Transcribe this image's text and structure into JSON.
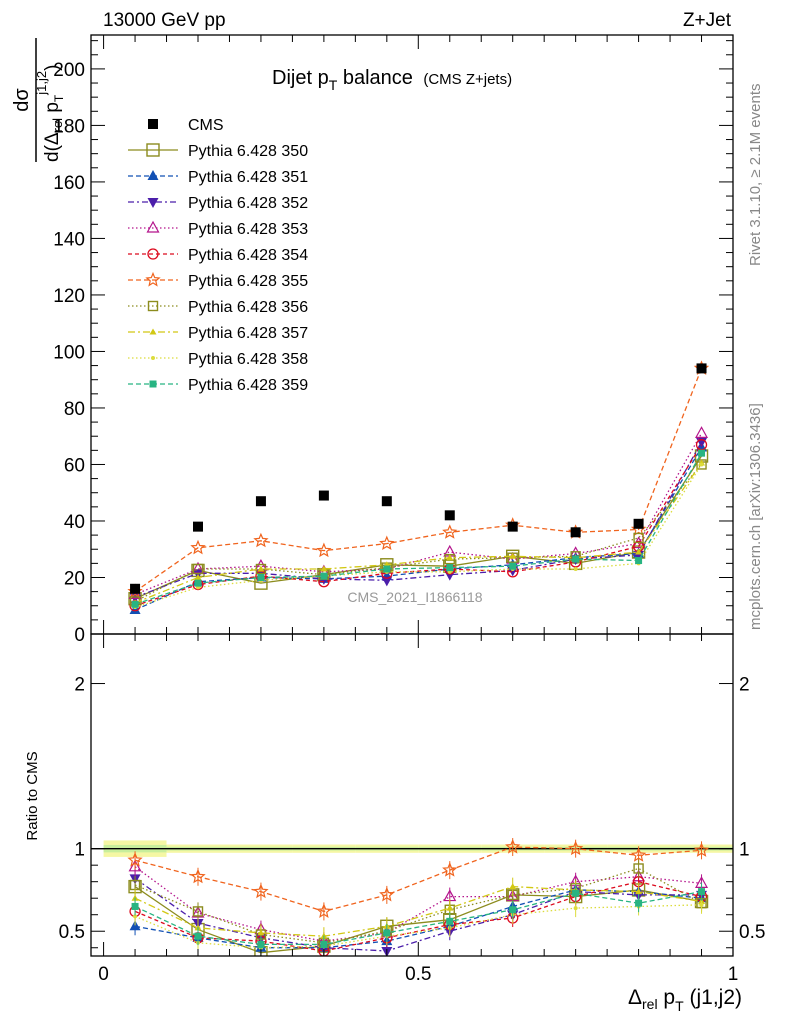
{
  "header": {
    "left": "13000 GeV pp",
    "right": "Z+Jet"
  },
  "title": {
    "main": "Dijet p",
    "main_sub": "T",
    "main_rest": " balance",
    "small": "(CMS Z+jets)"
  },
  "ylabel": {
    "num": "dσ",
    "den_a": "d(Δ",
    "den_b": "rel",
    "den_c": " p",
    "den_d": "T",
    "den_e": "j1,j2",
    "den_f": ")"
  },
  "xlabel": {
    "a": "Δ",
    "b": "rel",
    "c": " p",
    "d": "T",
    "e": " (j1,j2)"
  },
  "ratio_ylabel": "Ratio to CMS",
  "side_texts": {
    "rivet": "Rivet 3.1.10, ≥ 2.1M events",
    "mcplots": "mcplots.cern.ch [arXiv:1306.3436]"
  },
  "watermark": "CMS_2021_I1866118",
  "chart_data": {
    "type": "scatter",
    "x": [
      0.05,
      0.15,
      0.25,
      0.35,
      0.45,
      0.55,
      0.65,
      0.75,
      0.85,
      0.95
    ],
    "xlim": [
      -0.02,
      1.0
    ],
    "xticks": [
      {
        "v": 0,
        "l": "0"
      },
      {
        "v": 0.5,
        "l": "0.5"
      },
      {
        "v": 1,
        "l": "1"
      }
    ],
    "main": {
      "ylim": [
        0,
        212
      ],
      "yticks": [
        {
          "v": 0,
          "l": "0"
        },
        {
          "v": 20,
          "l": "20"
        },
        {
          "v": 40,
          "l": "40"
        },
        {
          "v": 60,
          "l": "60"
        },
        {
          "v": 80,
          "l": "80"
        },
        {
          "v": 100,
          "l": "100"
        },
        {
          "v": 120,
          "l": "120"
        },
        {
          "v": 140,
          "l": "140"
        },
        {
          "v": 160,
          "l": "160"
        },
        {
          "v": 180,
          "l": "180"
        },
        {
          "v": 200,
          "l": "200"
        }
      ]
    },
    "ratio": {
      "ylim": [
        0.35,
        2.3
      ],
      "yticks": [
        {
          "v": 0.5,
          "l": "0.5"
        },
        {
          "v": 1,
          "l": "1"
        },
        {
          "v": 2,
          "l": "2"
        }
      ]
    },
    "data": {
      "name": "CMS",
      "values": [
        16,
        38,
        47,
        49,
        47,
        42,
        38,
        36,
        39,
        94
      ]
    },
    "series": [
      {
        "name": "Pythia 6.428 350",
        "color": "#8c8c1e",
        "marker": "square-open-big",
        "dash": "",
        "values": [
          12.5,
          22.5,
          18,
          21,
          24.5,
          24,
          27.5,
          25,
          29,
          63
        ]
      },
      {
        "name": "Pythia 6.428 351",
        "color": "#1250b4",
        "marker": "triangle-up",
        "dash": "5,3",
        "values": [
          8.5,
          18.5,
          20,
          19.5,
          20.5,
          23,
          24.5,
          27,
          28.5,
          66
        ]
      },
      {
        "name": "Pythia 6.428 352",
        "color": "#4b1eaa",
        "marker": "triangle-down",
        "dash": "6,3,2,3",
        "values": [
          13,
          21.5,
          21.5,
          19.5,
          19,
          21,
          22.5,
          26.5,
          28,
          68
        ]
      },
      {
        "name": "Pythia 6.428 353",
        "color": "#b4148c",
        "marker": "triangle-open",
        "dash": "1.5,2.5",
        "values": [
          14,
          23,
          24,
          22,
          23,
          29,
          26.5,
          28.5,
          32,
          71
        ]
      },
      {
        "name": "Pythia 6.428 354",
        "color": "#dc0a1e",
        "marker": "circle-open",
        "dash": "4,3",
        "values": [
          10,
          17.5,
          20.5,
          18.5,
          21.5,
          23,
          22,
          25.5,
          31,
          67
        ]
      },
      {
        "name": "Pythia 6.428 355",
        "color": "#f0641e",
        "marker": "star-open",
        "dash": "5,3",
        "values": [
          15,
          30.5,
          33,
          29.5,
          32,
          36,
          38.5,
          36,
          37,
          94
        ]
      },
      {
        "name": "Pythia 6.428 356",
        "color": "#8c8c1e",
        "marker": "square-open",
        "dash": "1.5,2.5",
        "values": [
          11.5,
          23,
          23,
          21,
          23.5,
          26.5,
          27,
          27.5,
          34,
          60
        ]
      },
      {
        "name": "Pythia 6.428 357",
        "color": "#d2c814",
        "marker": "tri-small",
        "dash": "7,3,2,3",
        "values": [
          11,
          20,
          23,
          23,
          24.5,
          27,
          27.5,
          27,
          29,
          60.5
        ]
      },
      {
        "name": "Pythia 6.428 358",
        "color": "#dcdc3c",
        "marker": "dot",
        "dash": "1.5,2.5",
        "values": [
          9.5,
          16.5,
          19,
          20.5,
          22,
          22,
          23,
          23,
          25,
          60
        ]
      },
      {
        "name": "Pythia 6.428 359",
        "color": "#28b482",
        "marker": "square-filled",
        "dash": "5,3",
        "values": [
          10.5,
          18,
          20,
          20.5,
          23,
          23.5,
          24,
          26.5,
          26,
          64
        ]
      }
    ],
    "ratio_series": [
      [
        0.77,
        0.51,
        0.37,
        0.41,
        0.53,
        0.57,
        0.72,
        0.71,
        0.75,
        0.68
      ],
      [
        0.53,
        0.46,
        0.4,
        0.4,
        0.44,
        0.53,
        0.65,
        0.75,
        0.74,
        0.7
      ],
      [
        0.82,
        0.55,
        0.46,
        0.4,
        0.38,
        0.5,
        0.6,
        0.74,
        0.72,
        0.72
      ],
      [
        0.89,
        0.61,
        0.51,
        0.44,
        0.49,
        0.71,
        0.71,
        0.8,
        0.83,
        0.79
      ],
      [
        0.62,
        0.46,
        0.44,
        0.38,
        0.46,
        0.54,
        0.58,
        0.71,
        0.8,
        0.71
      ],
      [
        0.93,
        0.83,
        0.74,
        0.62,
        0.72,
        0.87,
        1.01,
        1.0,
        0.96,
        0.99
      ],
      [
        0.78,
        0.62,
        0.48,
        0.43,
        0.5,
        0.63,
        0.72,
        0.76,
        0.88,
        0.67
      ],
      [
        0.7,
        0.52,
        0.49,
        0.47,
        0.53,
        0.64,
        0.77,
        0.75,
        0.74,
        0.68
      ],
      [
        0.59,
        0.43,
        0.4,
        0.41,
        0.47,
        0.52,
        0.6,
        0.64,
        0.65,
        0.66
      ],
      [
        0.65,
        0.47,
        0.42,
        0.42,
        0.49,
        0.56,
        0.63,
        0.73,
        0.67,
        0.74
      ]
    ]
  }
}
